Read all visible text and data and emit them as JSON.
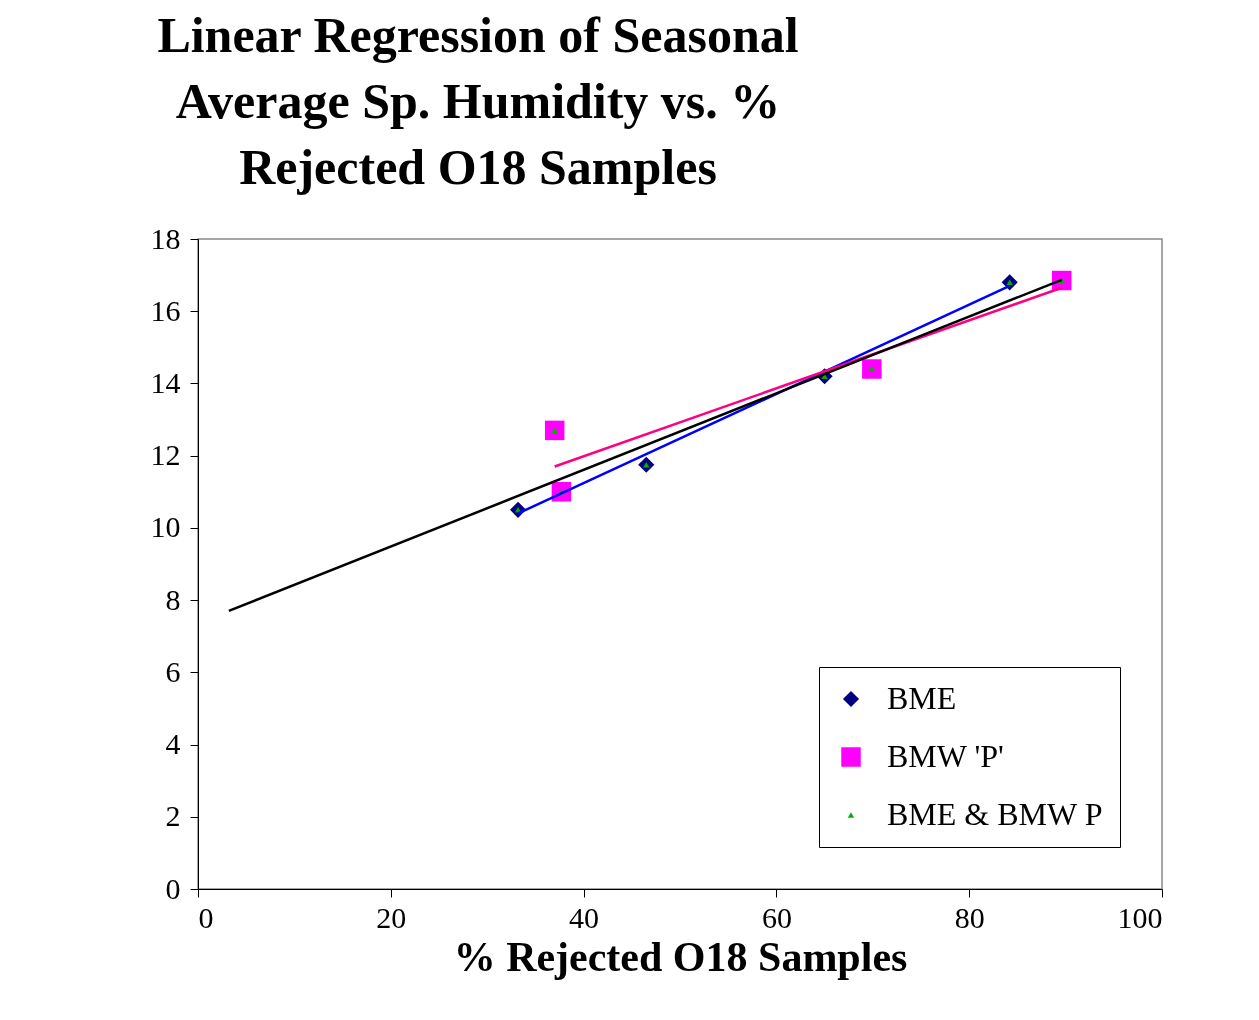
{
  "chart_data": {
    "type": "scatter",
    "title": [
      "Linear Regression  of Seasonal",
      "Average Sp. Humidity vs. %",
      "Rejected O18 Samples"
    ],
    "xlabel": "% Rejected O18 Samples",
    "xlim": [
      0,
      100
    ],
    "xticks": [
      0,
      20,
      40,
      60,
      80,
      100
    ],
    "ylim": [
      0,
      18
    ],
    "yticks": [
      0,
      2,
      4,
      6,
      8,
      10,
      12,
      14,
      16,
      18
    ],
    "grid": false,
    "legend": "bottom right",
    "series": [
      {
        "name": "BME",
        "color": "#000080",
        "marker": "diamond",
        "x": [
          33.2,
          46.5,
          65.0,
          84.2
        ],
        "values": [
          10.5,
          11.75,
          14.2,
          16.8
        ]
      },
      {
        "name": "BMW 'P'",
        "color": "#ff00ff",
        "marker": "square",
        "x": [
          37.0,
          37.7,
          69.9,
          89.6
        ],
        "values": [
          12.7,
          11.0,
          14.4,
          16.85
        ]
      },
      {
        "name": "BME & BMW P",
        "color": "#00b000",
        "marker": "triangle",
        "x": [
          33.2,
          46.5,
          65.0,
          84.2,
          37.0,
          37.7,
          69.9,
          89.6
        ],
        "values": [
          10.5,
          11.75,
          14.2,
          16.8,
          12.7,
          11.0,
          14.4,
          16.85
        ]
      },
      {
        "type": "line",
        "color": "#0000ff",
        "x": [
          33.2,
          84.2
        ],
        "values": [
          10.4,
          16.7
        ]
      },
      {
        "type": "line",
        "color": "#ff0080",
        "x": [
          37.0,
          89.6
        ],
        "values": [
          11.7,
          16.65
        ]
      },
      {
        "type": "line",
        "color": "#000000",
        "x": [
          3.2,
          89.6
        ],
        "values": [
          7.7,
          16.87
        ]
      }
    ]
  }
}
